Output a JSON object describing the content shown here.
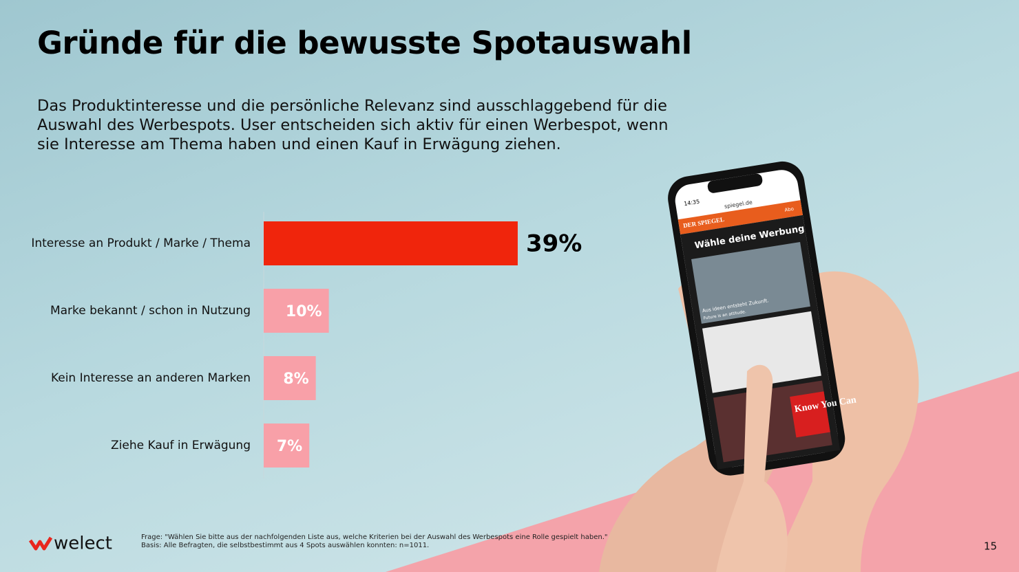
{
  "chart_data": {
    "type": "bar",
    "orientation": "horizontal",
    "title": "Gründe für die bewusste Spotauswahl",
    "subtitle": "Das Produktinteresse und die persönliche Relevanz sind ausschlaggebend für die Auswahl des Werbespots. User entscheiden sich aktiv für einen Werbespot, wenn sie Interesse am Thema haben und einen Kauf in Erwägung ziehen.",
    "categories": [
      "Interesse an Produkt / Marke / Thema",
      "Marke bekannt / schon in Nutzung",
      "Kein Interesse an anderen Marken",
      "Ziehe Kauf in Erwägung"
    ],
    "values": [
      39,
      10,
      8,
      7
    ],
    "value_labels": [
      "39%",
      "10%",
      "8%",
      "7%"
    ],
    "colors": [
      "#f0250c",
      "#f8a0a8",
      "#f8a0a8",
      "#f8a0a8"
    ]
  },
  "footer": {
    "question": "Frage: \"Wählen Sie bitte aus der nachfolgenden Liste aus, welche Kriterien bei der Auswahl des Werbespots eine Rolle gespielt haben.\"",
    "basis": "Basis: Alle Befragten, die selbstbestimmt aus 4 Spots auswählen konnten: n=1011.",
    "logo": "welect",
    "page_number": "15"
  },
  "phone": {
    "time": "14:35",
    "url": "spiegel.de",
    "brand": "DER SPIEGEL",
    "abo": "Abo",
    "heading": "Wähle deine Werbung",
    "ad1_title": "Aus ideen entsteht Zukunft.",
    "ad1_sub": "Future is an attitude.",
    "ad3": "Know You Can"
  }
}
